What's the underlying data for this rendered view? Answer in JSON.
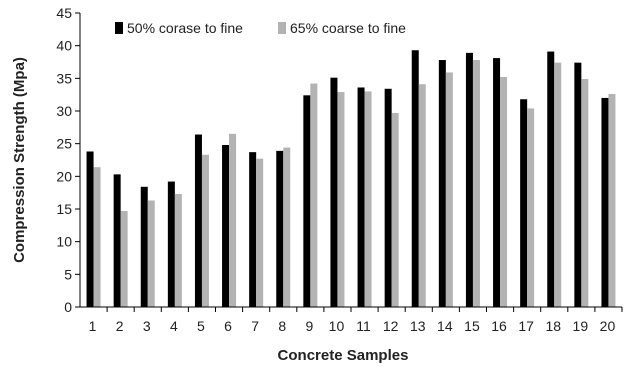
{
  "chart_data": {
    "type": "bar",
    "xlabel": "Concrete Samples",
    "ylabel": "Compression Strength (Mpa)",
    "ylim": [
      0,
      45
    ],
    "yticks": [
      0,
      5,
      10,
      15,
      20,
      25,
      30,
      35,
      40,
      45
    ],
    "categories": [
      "1",
      "2",
      "3",
      "4",
      "5",
      "6",
      "7",
      "8",
      "9",
      "10",
      "11",
      "12",
      "13",
      "14",
      "15",
      "16",
      "17",
      "18",
      "19",
      "20"
    ],
    "legend_position": "top-left",
    "grid": false,
    "series": [
      {
        "name": "50% corase to fine",
        "color": "#000000",
        "values": [
          23.8,
          20.3,
          18.4,
          19.2,
          26.4,
          24.8,
          23.7,
          23.9,
          32.4,
          35.1,
          33.6,
          33.4,
          39.3,
          37.8,
          38.9,
          38.1,
          31.8,
          39.1,
          37.4,
          32.0
        ]
      },
      {
        "name": "65% coarse to fine",
        "color": "#b3b3b3",
        "values": [
          21.4,
          14.7,
          16.3,
          17.3,
          23.3,
          26.5,
          22.7,
          24.4,
          34.2,
          32.9,
          33.0,
          29.7,
          34.1,
          35.9,
          37.8,
          35.2,
          30.4,
          37.4,
          34.9,
          32.6
        ]
      }
    ]
  }
}
